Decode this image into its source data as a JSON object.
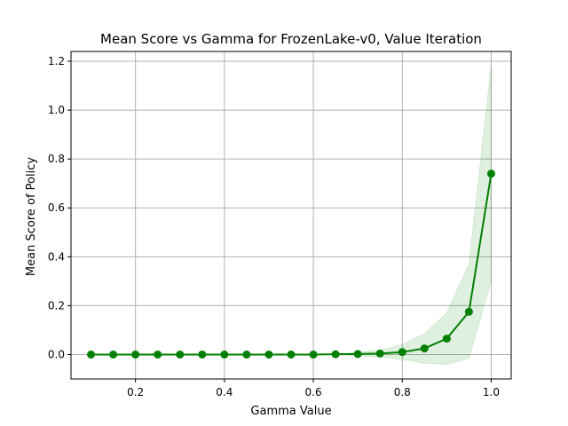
{
  "chart_data": {
    "type": "line",
    "title": "Mean Score vs Gamma for FrozenLake-v0, Value Iteration",
    "xlabel": "Gamma Value",
    "ylabel": "Mean Score of Policy",
    "xlim": [
      0.055,
      1.045
    ],
    "ylim": [
      -0.1,
      1.24
    ],
    "xticks": [
      0.2,
      0.4,
      0.6,
      0.8,
      1.0
    ],
    "xtick_labels": [
      "0.2",
      "0.4",
      "0.6",
      "0.8",
      "1.0"
    ],
    "yticks": [
      0.0,
      0.2,
      0.4,
      0.6,
      0.8,
      1.0,
      1.2
    ],
    "ytick_labels": [
      "0.0",
      "0.2",
      "0.4",
      "0.6",
      "0.8",
      "1.0",
      "1.2"
    ],
    "grid": true,
    "colors": {
      "line": "#008000",
      "band": "#008000"
    },
    "series": [
      {
        "x": [
          0.1,
          0.15,
          0.2,
          0.25,
          0.3,
          0.35,
          0.4,
          0.45,
          0.5,
          0.55,
          0.6,
          0.65,
          0.7,
          0.75,
          0.8,
          0.85,
          0.9,
          0.95,
          1.0
        ],
        "values": [
          0.0,
          0.0,
          0.0,
          0.0,
          0.0,
          0.0,
          0.0,
          0.0,
          0.0,
          0.0,
          0.0,
          0.001,
          0.002,
          0.004,
          0.01,
          0.025,
          0.065,
          0.175,
          0.74
        ],
        "lower": [
          0.0,
          0.0,
          0.0,
          0.0,
          0.0,
          0.0,
          0.0,
          0.0,
          0.0,
          0.0,
          0.0,
          -0.001,
          -0.005,
          -0.01,
          -0.02,
          -0.035,
          -0.04,
          -0.015,
          0.3
        ],
        "upper": [
          0.0,
          0.0,
          0.0,
          0.0,
          0.0,
          0.0,
          0.0,
          0.0,
          0.0,
          0.0,
          0.0,
          0.003,
          0.009,
          0.018,
          0.04,
          0.085,
          0.17,
          0.37,
          1.18
        ]
      }
    ]
  }
}
